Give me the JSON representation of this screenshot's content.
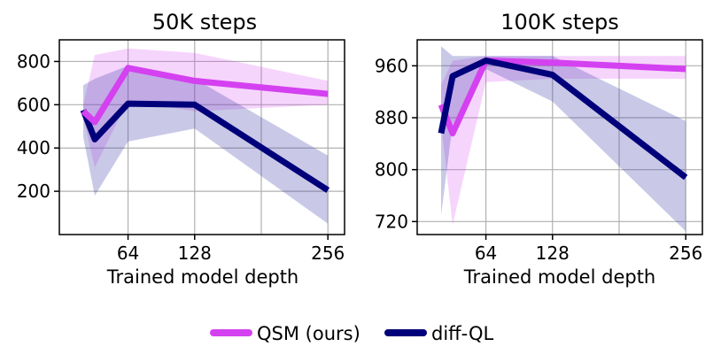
{
  "colors": {
    "qsm": "#d441f0",
    "diffql": "#00007a",
    "qsm_band": "#d441f0",
    "diffql_band": "#3d3daa",
    "grid": "#b0b0b0"
  },
  "legend": {
    "items": [
      {
        "label": "QSM (ours)",
        "color": "#d441f0"
      },
      {
        "label": "diff-QL",
        "color": "#00007a"
      }
    ]
  },
  "chart_data": [
    {
      "type": "line",
      "title": "50K steps",
      "xlabel": "Trained model depth",
      "ylabel": "",
      "x": [
        21,
        32,
        64,
        128,
        256
      ],
      "xlim": [
        -2,
        272
      ],
      "ylim": [
        0,
        900
      ],
      "xticks": [
        64,
        128,
        256
      ],
      "xtick_labels": [
        "64",
        "128",
        "256"
      ],
      "xgrid": [
        64,
        128,
        192,
        256
      ],
      "yticks": [
        200,
        400,
        600,
        800
      ],
      "ytick_labels": [
        "200",
        "400",
        "600",
        "800"
      ],
      "ygrid": [
        200,
        400,
        600,
        800
      ],
      "series": [
        {
          "name": "QSM (ours)",
          "values": [
            570,
            520,
            770,
            710,
            650
          ],
          "lower": [
            540,
            310,
            620,
            570,
            600
          ],
          "upper": [
            600,
            830,
            860,
            840,
            710
          ]
        },
        {
          "name": "diff-QL",
          "values": [
            575,
            440,
            605,
            600,
            205
          ],
          "lower": [
            450,
            180,
            430,
            490,
            50
          ],
          "upper": [
            690,
            720,
            780,
            720,
            365
          ]
        }
      ]
    },
    {
      "type": "line",
      "title": "100K steps",
      "xlabel": "Trained model depth",
      "ylabel": "",
      "x": [
        21,
        32,
        64,
        128,
        256
      ],
      "xlim": [
        -2,
        272
      ],
      "ylim": [
        700,
        1000
      ],
      "xticks": [
        64,
        128,
        256
      ],
      "xtick_labels": [
        "64",
        "128",
        "256"
      ],
      "xgrid": [
        64,
        128,
        192,
        256
      ],
      "yticks": [
        720,
        800,
        880,
        960
      ],
      "ytick_labels": [
        "720",
        "800",
        "880",
        "960"
      ],
      "ygrid": [
        720,
        800,
        880,
        960
      ],
      "series": [
        {
          "name": "QSM (ours)",
          "values": [
            900,
            856,
            968,
            965,
            955
          ],
          "lower": [
            870,
            715,
            935,
            940,
            940
          ],
          "upper": [
            930,
            968,
            975,
            975,
            975
          ]
        },
        {
          "name": "diff-QL",
          "values": [
            856,
            944,
            968,
            946,
            788
          ],
          "lower": [
            730,
            870,
            955,
            905,
            705
          ],
          "upper": [
            990,
            975,
            975,
            975,
            875
          ]
        }
      ]
    }
  ]
}
